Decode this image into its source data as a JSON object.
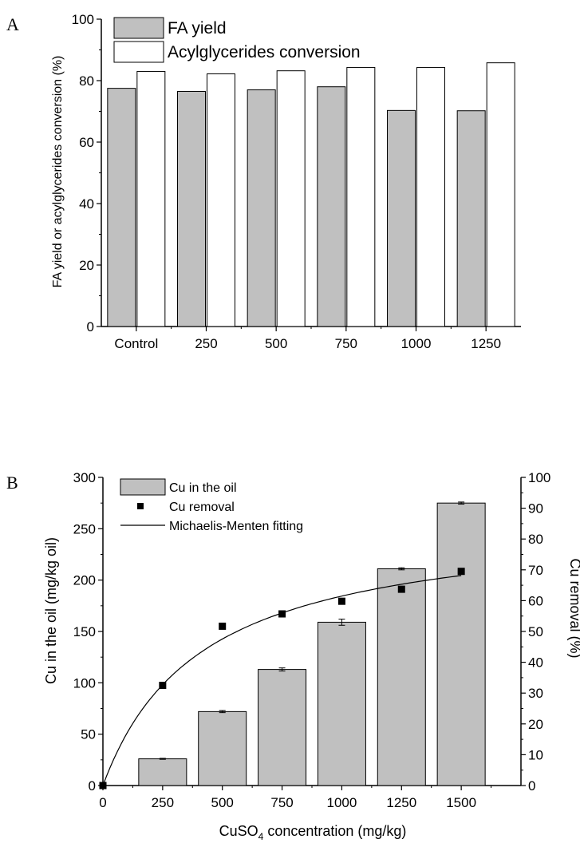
{
  "chart_data": [
    {
      "panel_label": "A",
      "type": "bar",
      "categories": [
        "Control",
        "250",
        "500",
        "750",
        "1000",
        "1250"
      ],
      "series": [
        {
          "name": "FA yield",
          "values": [
            77.5,
            76.5,
            77.0,
            78.0,
            70.3,
            70.2
          ],
          "color": "#c0c0c0"
        },
        {
          "name": "Acylglycerides conversion",
          "values": [
            83.0,
            82.2,
            83.2,
            84.3,
            84.3,
            85.8
          ],
          "color": "#ffffff"
        }
      ],
      "ylabel": "FA yield or acylglycerides conversion (%)",
      "xlabel": "",
      "ylim": [
        0,
        100
      ],
      "yticks": [
        "0",
        "20",
        "40",
        "60",
        "80",
        "100"
      ],
      "legend": "top-left",
      "grid": false
    },
    {
      "panel_label": "B",
      "type": "bar",
      "x": [
        0,
        250,
        500,
        750,
        1000,
        1250,
        1500
      ],
      "xticks": [
        "0",
        "250",
        "500",
        "750",
        "1000",
        "1250",
        "1500"
      ],
      "xlim": [
        0,
        1750
      ],
      "bars": {
        "name": "Cu in the oil",
        "x": [
          250,
          500,
          750,
          1000,
          1250,
          1500
        ],
        "values": [
          26,
          72,
          113,
          159,
          211,
          275
        ],
        "errors": [
          0.5,
          1,
          1.5,
          3,
          1,
          1
        ],
        "color": "#c0c0c0"
      },
      "scatter": {
        "name": "Cu removal",
        "x": [
          0,
          250,
          500,
          750,
          1000,
          1250,
          1500
        ],
        "values": [
          0,
          32.5,
          51.7,
          55.7,
          59.8,
          63.7,
          69.5
        ]
      },
      "fit": {
        "name": "Michaelis-Menten fitting",
        "vmax": 87,
        "km": 415,
        "x_range": [
          0,
          1500
        ]
      },
      "xlabel_main": "CuSO",
      "xlabel_sub": "4",
      "xlabel_rest": " concentration (mg/kg)",
      "ylabel_left": "Cu in the oil (mg/kg oil)",
      "ylabel_right": "Cu removal (%)",
      "ylim_left": [
        0,
        300
      ],
      "yticks_left": [
        "0",
        "50",
        "100",
        "150",
        "200",
        "250",
        "300"
      ],
      "ylim_right": [
        0,
        100
      ],
      "yticks_right": [
        "0",
        "10",
        "20",
        "30",
        "40",
        "50",
        "60",
        "70",
        "80",
        "90",
        "100"
      ],
      "legend": "top-left",
      "grid": false
    }
  ]
}
